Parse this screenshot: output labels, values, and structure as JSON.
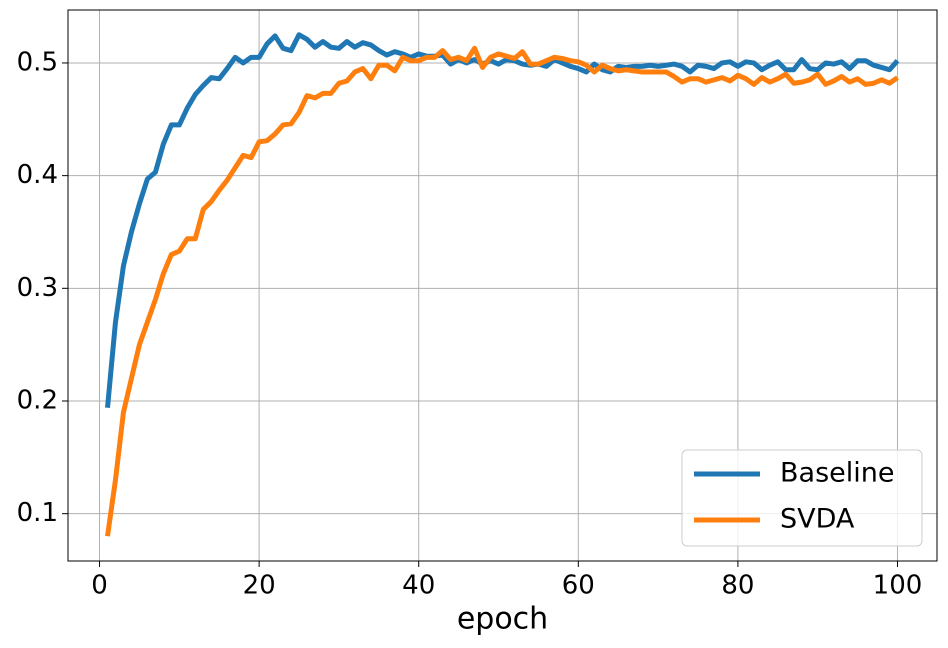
{
  "chart_data": {
    "type": "line",
    "x_label": "epoch",
    "x": [
      1,
      2,
      3,
      4,
      5,
      6,
      7,
      8,
      9,
      10,
      11,
      12,
      13,
      14,
      15,
      16,
      17,
      18,
      19,
      20,
      21,
      22,
      23,
      24,
      25,
      26,
      27,
      28,
      29,
      30,
      31,
      32,
      33,
      34,
      35,
      36,
      37,
      38,
      39,
      40,
      41,
      42,
      43,
      44,
      45,
      46,
      47,
      48,
      49,
      50,
      51,
      52,
      53,
      54,
      55,
      56,
      57,
      58,
      59,
      60,
      61,
      62,
      63,
      64,
      65,
      66,
      67,
      68,
      69,
      70,
      71,
      72,
      73,
      74,
      75,
      76,
      77,
      78,
      79,
      80,
      81,
      82,
      83,
      84,
      85,
      86,
      87,
      88,
      89,
      90,
      91,
      92,
      93,
      94,
      95,
      96,
      97,
      98,
      99,
      100
    ],
    "series": [
      {
        "name": "Baseline",
        "color": "#1f77b4",
        "values": [
          0.194,
          0.27,
          0.32,
          0.35,
          0.375,
          0.397,
          0.403,
          0.428,
          0.445,
          0.445,
          0.46,
          0.472,
          0.48,
          0.487,
          0.486,
          0.495,
          0.505,
          0.5,
          0.505,
          0.505,
          0.517,
          0.524,
          0.513,
          0.511,
          0.525,
          0.521,
          0.514,
          0.519,
          0.514,
          0.513,
          0.519,
          0.514,
          0.518,
          0.516,
          0.511,
          0.507,
          0.51,
          0.508,
          0.505,
          0.508,
          0.506,
          0.506,
          0.507,
          0.499,
          0.503,
          0.5,
          0.503,
          0.499,
          0.502,
          0.499,
          0.503,
          0.502,
          0.499,
          0.498,
          0.499,
          0.497,
          0.503,
          0.5,
          0.497,
          0.495,
          0.492,
          0.499,
          0.494,
          0.492,
          0.497,
          0.496,
          0.497,
          0.497,
          0.498,
          0.497,
          0.498,
          0.499,
          0.497,
          0.492,
          0.498,
          0.497,
          0.495,
          0.5,
          0.501,
          0.497,
          0.501,
          0.5,
          0.494,
          0.498,
          0.501,
          0.494,
          0.494,
          0.503,
          0.495,
          0.494,
          0.5,
          0.499,
          0.501,
          0.495,
          0.502,
          0.502,
          0.498,
          0.496,
          0.494,
          0.502
        ]
      },
      {
        "name": "SVDA",
        "color": "#ff7f0e",
        "values": [
          0.08,
          0.13,
          0.19,
          0.22,
          0.25,
          0.27,
          0.29,
          0.313,
          0.33,
          0.333,
          0.344,
          0.344,
          0.37,
          0.377,
          0.387,
          0.396,
          0.407,
          0.418,
          0.416,
          0.43,
          0.431,
          0.437,
          0.445,
          0.446,
          0.456,
          0.471,
          0.469,
          0.473,
          0.473,
          0.482,
          0.484,
          0.492,
          0.495,
          0.486,
          0.498,
          0.498,
          0.493,
          0.505,
          0.502,
          0.502,
          0.505,
          0.505,
          0.511,
          0.503,
          0.505,
          0.502,
          0.513,
          0.496,
          0.505,
          0.508,
          0.506,
          0.504,
          0.51,
          0.499,
          0.499,
          0.502,
          0.505,
          0.504,
          0.502,
          0.501,
          0.498,
          0.492,
          0.498,
          0.495,
          0.493,
          0.494,
          0.493,
          0.492,
          0.492,
          0.492,
          0.492,
          0.488,
          0.483,
          0.486,
          0.486,
          0.483,
          0.485,
          0.487,
          0.484,
          0.489,
          0.486,
          0.481,
          0.487,
          0.483,
          0.486,
          0.49,
          0.482,
          0.483,
          0.485,
          0.49,
          0.481,
          0.484,
          0.488,
          0.483,
          0.486,
          0.481,
          0.482,
          0.485,
          0.482,
          0.487
        ]
      }
    ],
    "xlim": [
      -3.95,
      104.95
    ],
    "ylim": [
      0.058,
      0.547
    ],
    "xticks": [
      0,
      20,
      40,
      60,
      80,
      100
    ],
    "yticks": [
      0.1,
      0.2,
      0.3,
      0.4,
      0.5
    ],
    "grid": true,
    "legend": "lower right"
  }
}
